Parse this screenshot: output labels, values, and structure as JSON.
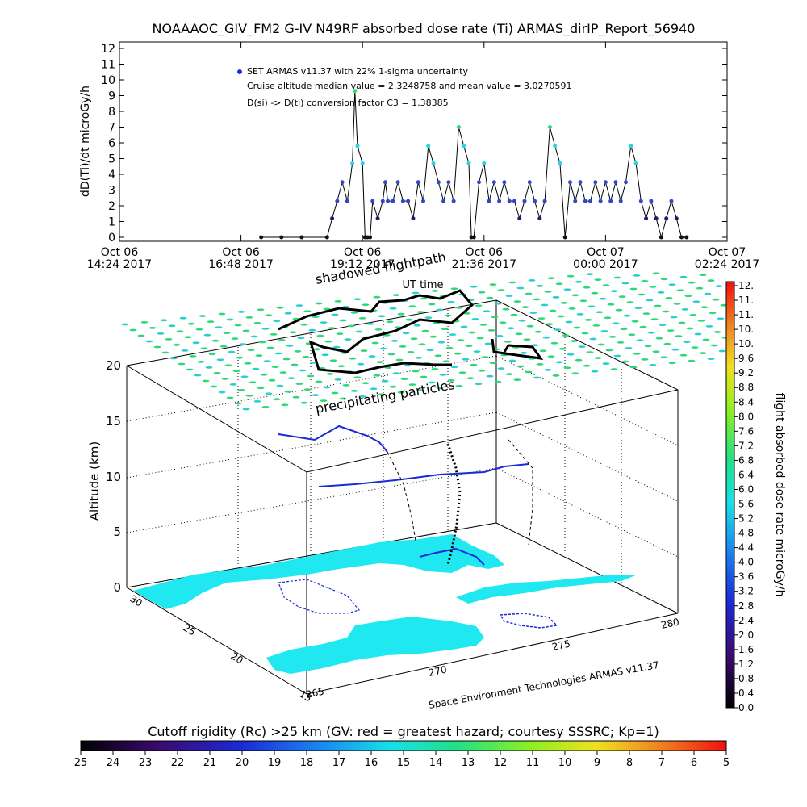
{
  "header": {
    "title": "NOAAAOC_GIV_FM2 G-IV    N49RF  absorbed dose rate (Ti) ARMAS_dirIP_Report_56940"
  },
  "colors": {
    "background": "#ffffff",
    "axis": "#000000",
    "points_low": "#2a1a6e",
    "points_mid": "#2e48c8",
    "points_high": "#29d3e6",
    "points_peak": "#2fdc74",
    "points_zero": "#111111",
    "grid_field": "#2ed87a",
    "grid_field_low": "#27d0cc",
    "map_land": "#1fe8f0",
    "flightpath": "#000000"
  },
  "chart_data": [
    {
      "type": "scatter",
      "title": "NOAAAOC_GIV_FM2 G-IV    N49RF  absorbed dose rate (Ti) ARMAS_dirIP_Report_56940",
      "xlabel": "UT time",
      "ylabel": "dD(Ti)/dt microGy/h",
      "ylim": [
        0,
        12
      ],
      "yticks": [
        "0",
        "1",
        "2",
        "3",
        "4",
        "5",
        "6",
        "7",
        "8",
        "9",
        "10",
        "11",
        "12"
      ],
      "xticks": [
        {
          "day": "Oct 06",
          "time": "14:24 2017"
        },
        {
          "day": "Oct 06",
          "time": "16:48 2017"
        },
        {
          "day": "Oct 06",
          "time": "19:12 2017"
        },
        {
          "day": "Oct 06",
          "time": "21:36 2017"
        },
        {
          "day": "Oct 07",
          "time": "00:00 2017"
        },
        {
          "day": "Oct 07",
          "time": "02:24 2017"
        }
      ],
      "xlim_hours": [
        14.4,
        26.4
      ],
      "legend": {
        "placement": "top-left",
        "entry": "SET ARMAS v11.37 with 22% 1-sigma uncertainty",
        "median_line": "Cruise altitude median value = 2.3248758 and mean value = 3.0270591",
        "conversion_line": "D(si) -> D(ti) conversion factor C3 = 1.38385"
      },
      "series": [
        {
          "x_hours": [
            17.2,
            17.6,
            18.0,
            18.5,
            18.6,
            18.7,
            18.8,
            18.9,
            19.0,
            19.05,
            19.1,
            19.2,
            19.25,
            19.3,
            19.35,
            19.4,
            19.5,
            19.6,
            19.65,
            19.7,
            19.8,
            19.9,
            20.0,
            20.1,
            20.2,
            20.3,
            20.4,
            20.5,
            20.6,
            20.7,
            20.8,
            20.9,
            21.0,
            21.1,
            21.2,
            21.3,
            21.35,
            21.4,
            21.5,
            21.6,
            21.7,
            21.8,
            21.9,
            22.0,
            22.1,
            22.2,
            22.3,
            22.4,
            22.5,
            22.6,
            22.7,
            22.8,
            22.9,
            23.0,
            23.1,
            23.2,
            23.3,
            23.4,
            23.5,
            23.6,
            23.7,
            23.8,
            23.9,
            24.0,
            24.1,
            24.2,
            24.3,
            24.4,
            24.5,
            24.6,
            24.7,
            24.8,
            24.9,
            25.0,
            25.1,
            25.2,
            25.3,
            25.4,
            25.5,
            25.6
          ],
          "y": [
            0,
            0,
            0,
            0,
            1.2,
            2.3,
            3.5,
            2.3,
            4.7,
            9.3,
            5.8,
            4.7,
            0,
            0,
            0,
            2.3,
            1.2,
            2.3,
            3.5,
            2.3,
            2.3,
            3.5,
            2.3,
            2.3,
            1.2,
            3.5,
            2.3,
            5.8,
            4.7,
            3.5,
            2.3,
            3.5,
            2.3,
            7.0,
            5.8,
            4.7,
            0,
            0,
            3.5,
            4.7,
            2.3,
            3.5,
            2.3,
            3.5,
            2.3,
            2.3,
            1.2,
            2.3,
            3.5,
            2.3,
            1.2,
            2.3,
            7.0,
            5.8,
            4.7,
            0,
            3.5,
            2.3,
            3.5,
            2.3,
            2.3,
            3.5,
            2.3,
            3.5,
            2.3,
            3.5,
            2.3,
            3.5,
            5.8,
            4.7,
            2.3,
            1.2,
            2.3,
            1.2,
            0,
            1.2,
            2.3,
            1.2,
            0,
            0
          ]
        }
      ]
    },
    {
      "type": "scatter",
      "title": "",
      "zlabel": "Altitude (km)",
      "zticks": [
        "0",
        "5",
        "10",
        "15",
        "20"
      ],
      "x_ticks": [
        "265",
        "270",
        "275",
        "280"
      ],
      "y_ticks": [
        "15",
        "20",
        "25",
        "30"
      ],
      "annotations": {
        "shadow": "shadowed flightpath",
        "particles": "precipitating particles",
        "credit": "Space Environment Technologies ARMAS v11.37"
      },
      "colorbar": {
        "label": "flight absorbed dose rate microGy/h",
        "ticks": [
          "0.0",
          "0.4",
          "0.8",
          "1.2",
          "1.6",
          "2.0",
          "2.4",
          "2.8",
          "3.2",
          "3.6",
          "4.0",
          "4.4",
          "4.8",
          "5.2",
          "5.6",
          "6.0",
          "6.4",
          "6.8",
          "7.2",
          "7.6",
          "8.0",
          "8.4",
          "8.8",
          "9.2",
          "9.6",
          "10.",
          "10.",
          "11.",
          "11.",
          "12."
        ]
      }
    },
    {
      "type": "heatmap",
      "title": "Cutoff rigidity (Rc) >25 km (GV: red = greatest hazard; courtesy SSSRC; Kp=1)",
      "ticks": [
        "25",
        "24",
        "23",
        "22",
        "21",
        "20",
        "19",
        "18",
        "17",
        "16",
        "15",
        "14",
        "13",
        "12",
        "11",
        "10",
        "9",
        "8",
        "7",
        "6",
        "5"
      ]
    }
  ]
}
